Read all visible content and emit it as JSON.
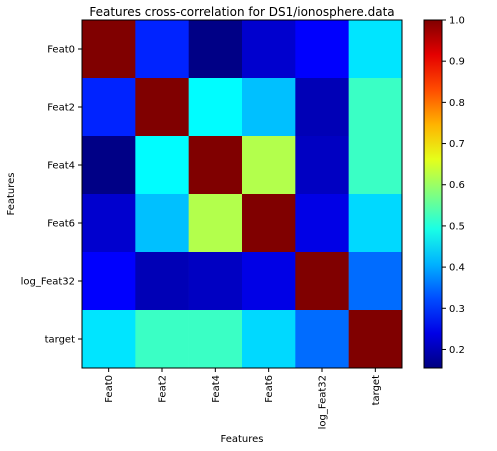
{
  "chart_data": {
    "type": "heatmap",
    "title": "Features cross-correlation for DS1/ionosphere.data",
    "xlabel": "Features",
    "ylabel": "Features",
    "x_categories": [
      "Feat0",
      "Feat2",
      "Feat4",
      "Feat6",
      "log_Feat32",
      "target"
    ],
    "y_categories": [
      "Feat0",
      "Feat2",
      "Feat4",
      "Feat6",
      "log_Feat32",
      "target"
    ],
    "values": [
      [
        1.0,
        0.29,
        0.16,
        0.22,
        0.26,
        0.45
      ],
      [
        0.29,
        1.0,
        0.47,
        0.42,
        0.2,
        0.52
      ],
      [
        0.16,
        0.47,
        1.0,
        0.62,
        0.21,
        0.52
      ],
      [
        0.22,
        0.42,
        0.62,
        1.0,
        0.24,
        0.44
      ],
      [
        0.26,
        0.2,
        0.21,
        0.24,
        1.0,
        0.35
      ],
      [
        0.45,
        0.52,
        0.52,
        0.44,
        0.35,
        1.0
      ]
    ],
    "colormap": "jet",
    "colorbar": {
      "range": [
        0.155,
        1.0
      ],
      "ticks": [
        "0.2",
        "0.3",
        "0.4",
        "0.5",
        "0.6",
        "0.7",
        "0.8",
        "0.9",
        "1.0"
      ]
    },
    "grid": false
  }
}
